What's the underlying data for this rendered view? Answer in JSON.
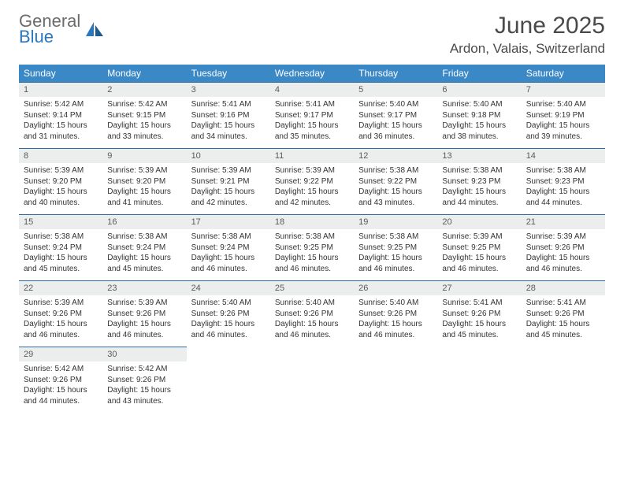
{
  "brand": {
    "line1": "General",
    "line2": "Blue"
  },
  "title": "June 2025",
  "location": "Ardon, Valais, Switzerland",
  "colors": {
    "header_bg": "#3b88c7",
    "header_text": "#ffffff",
    "daynum_bg": "#eceeee",
    "row_border": "#2f6aa0",
    "text": "#333333",
    "brand_gray": "#6b6b6b",
    "brand_blue": "#2a77bd",
    "page_bg": "#ffffff"
  },
  "weekdays": [
    "Sunday",
    "Monday",
    "Tuesday",
    "Wednesday",
    "Thursday",
    "Friday",
    "Saturday"
  ],
  "days": [
    {
      "n": 1,
      "sunrise": "5:42 AM",
      "sunset": "9:14 PM",
      "daylight": "15 hours and 31 minutes."
    },
    {
      "n": 2,
      "sunrise": "5:42 AM",
      "sunset": "9:15 PM",
      "daylight": "15 hours and 33 minutes."
    },
    {
      "n": 3,
      "sunrise": "5:41 AM",
      "sunset": "9:16 PM",
      "daylight": "15 hours and 34 minutes."
    },
    {
      "n": 4,
      "sunrise": "5:41 AM",
      "sunset": "9:17 PM",
      "daylight": "15 hours and 35 minutes."
    },
    {
      "n": 5,
      "sunrise": "5:40 AM",
      "sunset": "9:17 PM",
      "daylight": "15 hours and 36 minutes."
    },
    {
      "n": 6,
      "sunrise": "5:40 AM",
      "sunset": "9:18 PM",
      "daylight": "15 hours and 38 minutes."
    },
    {
      "n": 7,
      "sunrise": "5:40 AM",
      "sunset": "9:19 PM",
      "daylight": "15 hours and 39 minutes."
    },
    {
      "n": 8,
      "sunrise": "5:39 AM",
      "sunset": "9:20 PM",
      "daylight": "15 hours and 40 minutes."
    },
    {
      "n": 9,
      "sunrise": "5:39 AM",
      "sunset": "9:20 PM",
      "daylight": "15 hours and 41 minutes."
    },
    {
      "n": 10,
      "sunrise": "5:39 AM",
      "sunset": "9:21 PM",
      "daylight": "15 hours and 42 minutes."
    },
    {
      "n": 11,
      "sunrise": "5:39 AM",
      "sunset": "9:22 PM",
      "daylight": "15 hours and 42 minutes."
    },
    {
      "n": 12,
      "sunrise": "5:38 AM",
      "sunset": "9:22 PM",
      "daylight": "15 hours and 43 minutes."
    },
    {
      "n": 13,
      "sunrise": "5:38 AM",
      "sunset": "9:23 PM",
      "daylight": "15 hours and 44 minutes."
    },
    {
      "n": 14,
      "sunrise": "5:38 AM",
      "sunset": "9:23 PM",
      "daylight": "15 hours and 44 minutes."
    },
    {
      "n": 15,
      "sunrise": "5:38 AM",
      "sunset": "9:24 PM",
      "daylight": "15 hours and 45 minutes."
    },
    {
      "n": 16,
      "sunrise": "5:38 AM",
      "sunset": "9:24 PM",
      "daylight": "15 hours and 45 minutes."
    },
    {
      "n": 17,
      "sunrise": "5:38 AM",
      "sunset": "9:24 PM",
      "daylight": "15 hours and 46 minutes."
    },
    {
      "n": 18,
      "sunrise": "5:38 AM",
      "sunset": "9:25 PM",
      "daylight": "15 hours and 46 minutes."
    },
    {
      "n": 19,
      "sunrise": "5:38 AM",
      "sunset": "9:25 PM",
      "daylight": "15 hours and 46 minutes."
    },
    {
      "n": 20,
      "sunrise": "5:39 AM",
      "sunset": "9:25 PM",
      "daylight": "15 hours and 46 minutes."
    },
    {
      "n": 21,
      "sunrise": "5:39 AM",
      "sunset": "9:26 PM",
      "daylight": "15 hours and 46 minutes."
    },
    {
      "n": 22,
      "sunrise": "5:39 AM",
      "sunset": "9:26 PM",
      "daylight": "15 hours and 46 minutes."
    },
    {
      "n": 23,
      "sunrise": "5:39 AM",
      "sunset": "9:26 PM",
      "daylight": "15 hours and 46 minutes."
    },
    {
      "n": 24,
      "sunrise": "5:40 AM",
      "sunset": "9:26 PM",
      "daylight": "15 hours and 46 minutes."
    },
    {
      "n": 25,
      "sunrise": "5:40 AM",
      "sunset": "9:26 PM",
      "daylight": "15 hours and 46 minutes."
    },
    {
      "n": 26,
      "sunrise": "5:40 AM",
      "sunset": "9:26 PM",
      "daylight": "15 hours and 46 minutes."
    },
    {
      "n": 27,
      "sunrise": "5:41 AM",
      "sunset": "9:26 PM",
      "daylight": "15 hours and 45 minutes."
    },
    {
      "n": 28,
      "sunrise": "5:41 AM",
      "sunset": "9:26 PM",
      "daylight": "15 hours and 45 minutes."
    },
    {
      "n": 29,
      "sunrise": "5:42 AM",
      "sunset": "9:26 PM",
      "daylight": "15 hours and 44 minutes."
    },
    {
      "n": 30,
      "sunrise": "5:42 AM",
      "sunset": "9:26 PM",
      "daylight": "15 hours and 43 minutes."
    }
  ],
  "labels": {
    "sunrise": "Sunrise: ",
    "sunset": "Sunset: ",
    "daylight": "Daylight: "
  }
}
